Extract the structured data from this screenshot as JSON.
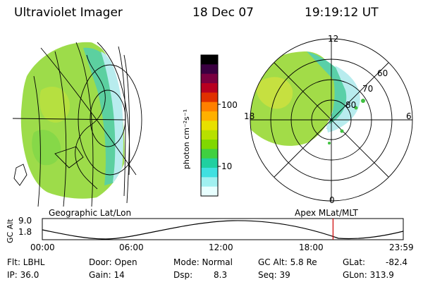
{
  "header": {
    "instrument": "Ultraviolet Imager",
    "date": "18 Dec 07",
    "time": "19:19:12 UT"
  },
  "left_panel": {
    "caption": "Geographic Lat/Lon"
  },
  "right_panel": {
    "caption": "Apex MLat/MLT",
    "mlt_labels": {
      "top": "12",
      "left": "18",
      "right": "6",
      "bottom": "0"
    },
    "lat_labels": [
      "80",
      "70",
      "60"
    ]
  },
  "colorbar": {
    "label": "photon cm⁻²s⁻¹",
    "ticks": [
      "100",
      "10"
    ],
    "colors": [
      "#000000",
      "#3a0040",
      "#7a0040",
      "#b80020",
      "#e03000",
      "#ff8000",
      "#ffb000",
      "#e8e000",
      "#b8e000",
      "#80d800",
      "#40d040",
      "#20d0a0",
      "#40e0e0",
      "#a0f0f0",
      "#e8ffff"
    ]
  },
  "timeline": {
    "ylabel": "GC Alt",
    "y_ticks": [
      "9.0",
      "1.8"
    ],
    "x_ticks": [
      "00:00",
      "06:00",
      "12:00",
      "18:00",
      "23:59"
    ],
    "marker_time": "19:19",
    "marker_color": "#cc0000"
  },
  "info": {
    "filter": "Flt: LBHL",
    "ip": "IP: 36.0",
    "door": "Door: Open",
    "gain": "Gain: 14",
    "mode": "Mode: Normal",
    "dsp_label": "Dsp:",
    "dsp_value": "8.3",
    "gc_alt": "GC Alt: 5.8 Re",
    "seq": "Seq: 39",
    "glat_label": "GLat:",
    "glat_value": "-82.4",
    "glon": "GLon: 313.9"
  }
}
